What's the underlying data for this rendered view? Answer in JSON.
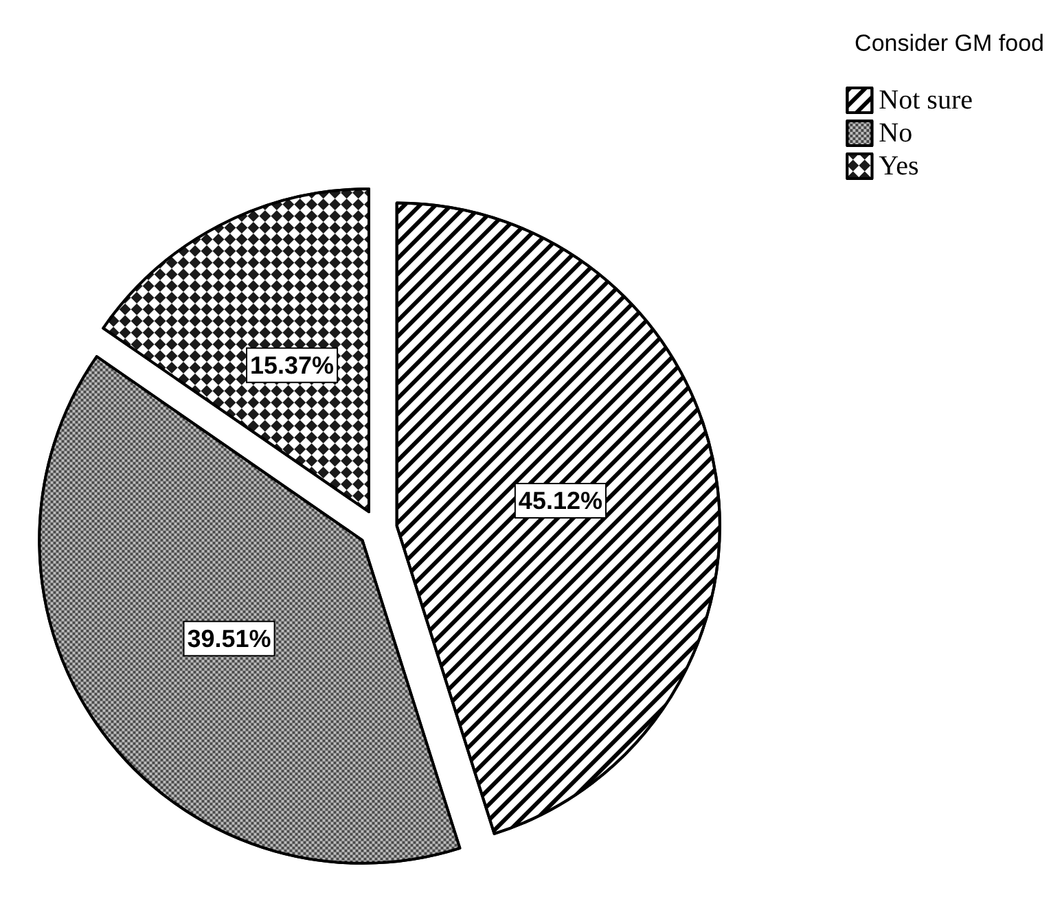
{
  "chart_data": {
    "type": "pie",
    "legend_title": "Consider GM food",
    "legend": "top right",
    "value_labels": [
      "45.12%",
      "39.51%",
      "15.37%"
    ],
    "categories": [
      "Not sure",
      "No",
      "Yes"
    ],
    "values": [
      45.12,
      39.51,
      15.37
    ],
    "colors": [
      "#ffffff",
      "#4a4a4a",
      "#1a1a1a"
    ]
  }
}
